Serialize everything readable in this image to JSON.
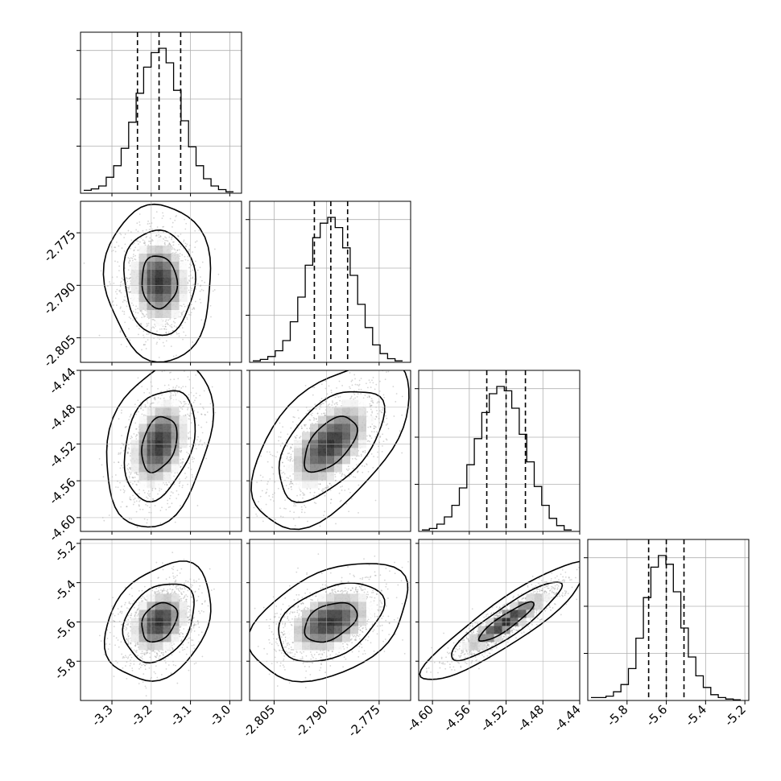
{
  "chart_data": {
    "type": "corner",
    "parameters": [
      {
        "range": [
          -3.38,
          -2.97
        ],
        "ticks": [
          "-3.3",
          "-3.2",
          "-3.1",
          "-3.0"
        ],
        "tick_values": [
          -3.3,
          -3.2,
          -3.1,
          -3.0
        ],
        "quantiles": [
          -3.235,
          -3.18,
          -3.125
        ],
        "histogram": [
          0.02,
          0.03,
          0.05,
          0.11,
          0.19,
          0.31,
          0.49,
          0.69,
          0.87,
          0.97,
          1.0,
          0.9,
          0.71,
          0.5,
          0.32,
          0.19,
          0.1,
          0.05,
          0.025,
          0.01
        ]
      },
      {
        "range": [
          -2.812,
          -2.766
        ],
        "ticks": [
          "-2.805",
          "-2.790",
          "-2.775"
        ],
        "tick_values": [
          -2.805,
          -2.79,
          -2.775
        ],
        "quantiles": [
          -2.7935,
          -2.7888,
          -2.784
        ],
        "histogram": [
          0.01,
          0.02,
          0.04,
          0.08,
          0.15,
          0.28,
          0.45,
          0.67,
          0.86,
          0.96,
          1.0,
          0.93,
          0.79,
          0.6,
          0.4,
          0.24,
          0.12,
          0.06,
          0.025,
          0.01
        ]
      },
      {
        "range": [
          -4.615,
          -4.44
        ],
        "ticks": [
          "-4.60",
          "-4.56",
          "-4.52",
          "-4.48",
          "-4.44"
        ],
        "tick_values": [
          -4.6,
          -4.56,
          -4.52,
          -4.48,
          -4.44
        ],
        "quantiles": [
          -4.541,
          -4.52,
          -4.499
        ],
        "histogram": [
          0.01,
          0.02,
          0.05,
          0.1,
          0.18,
          0.3,
          0.46,
          0.64,
          0.82,
          0.95,
          1.0,
          0.97,
          0.85,
          0.67,
          0.48,
          0.31,
          0.18,
          0.09,
          0.04,
          0.01
        ]
      },
      {
        "range": [
          -6.0,
          -5.18
        ],
        "ticks": [
          "-5.8",
          "-5.6",
          "-5.4",
          "-5.2"
        ],
        "tick_values": [
          -5.8,
          -5.6,
          -5.4,
          -5.2
        ],
        "quantiles": [
          -5.69,
          -5.6,
          -5.51
        ],
        "histogram": [
          0.02,
          0.02,
          0.03,
          0.06,
          0.11,
          0.22,
          0.43,
          0.71,
          0.92,
          1.0,
          0.94,
          0.75,
          0.5,
          0.3,
          0.17,
          0.09,
          0.04,
          0.02,
          0.01,
          0.005
        ]
      }
    ],
    "row_ticks": {
      "1": {
        "labels": [
          "-2.775",
          "-2.790",
          "-2.805"
        ],
        "values": [
          -2.775,
          -2.79,
          -2.805
        ]
      },
      "2": {
        "labels": [
          "-4.44",
          "-4.48",
          "-4.52",
          "-4.56",
          "-4.60"
        ],
        "values": [
          -4.44,
          -4.48,
          -4.52,
          -4.56,
          -4.6
        ]
      },
      "3": {
        "labels": [
          "-5.2",
          "-5.4",
          "-5.6",
          "-5.8"
        ],
        "values": [
          -5.2,
          -5.4,
          -5.6,
          -5.8
        ]
      }
    },
    "pairs": [
      {
        "row": 1,
        "col": 0,
        "center": [
          -3.18,
          -2.789
        ],
        "sd": [
          0.045,
          0.0075
        ],
        "rho": -0.05
      },
      {
        "row": 2,
        "col": 0,
        "center": [
          -3.18,
          -4.52
        ],
        "sd": [
          0.045,
          0.03
        ],
        "rho": 0.3
      },
      {
        "row": 2,
        "col": 1,
        "center": [
          -2.789,
          -4.52
        ],
        "sd": [
          0.0075,
          0.03
        ],
        "rho": 0.55
      },
      {
        "row": 3,
        "col": 0,
        "center": [
          -3.18,
          -5.6
        ],
        "sd": [
          0.045,
          0.1
        ],
        "rho": 0.3
      },
      {
        "row": 3,
        "col": 1,
        "center": [
          -2.789,
          -5.6
        ],
        "sd": [
          0.0075,
          0.1
        ],
        "rho": 0.4
      },
      {
        "row": 3,
        "col": 2,
        "center": [
          -4.52,
          -5.6
        ],
        "sd": [
          0.03,
          0.1
        ],
        "rho": 0.9
      }
    ],
    "contour_levels": [
      0.393,
      0.865,
      0.989
    ],
    "grid": true,
    "colors": {
      "line": "#000000",
      "points": "#888888",
      "grid": "#b0b0b0"
    }
  }
}
